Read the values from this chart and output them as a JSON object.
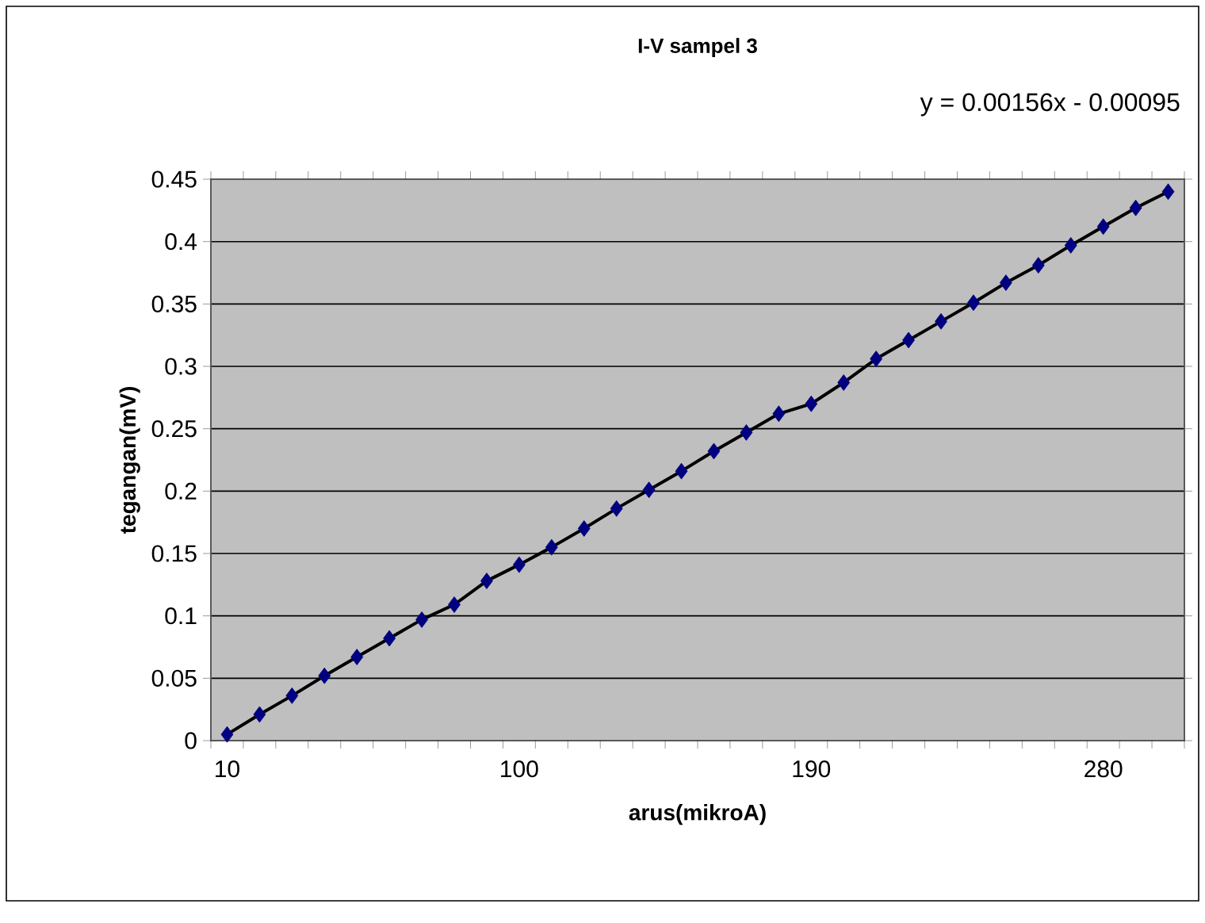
{
  "chart_data": {
    "type": "line",
    "title": "I-V sampel 3",
    "xlabel": "arus(mikroA)",
    "ylabel": "tegangan(mV)",
    "categories": [
      "10",
      null,
      null,
      null,
      null,
      null,
      null,
      null,
      null,
      "100",
      null,
      null,
      null,
      null,
      null,
      null,
      null,
      null,
      "190",
      null,
      null,
      null,
      null,
      null,
      null,
      null,
      null,
      "280",
      null,
      null
    ],
    "series": [
      {
        "type": "scatter",
        "color": "#000080",
        "marker": "diamond",
        "values": [
          0.005,
          0.021,
          0.036,
          0.052,
          0.067,
          0.082,
          0.097,
          0.109,
          0.128,
          0.141,
          0.155,
          0.17,
          0.186,
          0.201,
          0.216,
          0.232,
          0.247,
          0.262,
          0.27,
          0.287,
          0.306,
          0.321,
          0.336,
          0.351,
          0.367,
          0.381,
          0.397,
          0.412,
          0.427,
          0.44
        ]
      },
      {
        "type": "line",
        "color": "#000000",
        "marker": "none",
        "line_style": "solid",
        "values": [
          0.005,
          0.021,
          0.036,
          0.052,
          0.067,
          0.082,
          0.097,
          0.109,
          0.128,
          0.141,
          0.155,
          0.17,
          0.186,
          0.201,
          0.216,
          0.232,
          0.247,
          0.262,
          0.27,
          0.287,
          0.306,
          0.321,
          0.336,
          0.351,
          0.367,
          0.381,
          0.397,
          0.412,
          0.427,
          0.44
        ]
      }
    ],
    "ylim": [
      0,
      0.45
    ],
    "yticks": [
      0,
      0.05,
      0.1,
      0.15,
      0.2,
      0.25,
      0.3,
      0.35,
      0.4,
      0.45
    ],
    "grid": "y",
    "annotations": [
      "y = 0.00156x - 0.00095"
    ]
  }
}
